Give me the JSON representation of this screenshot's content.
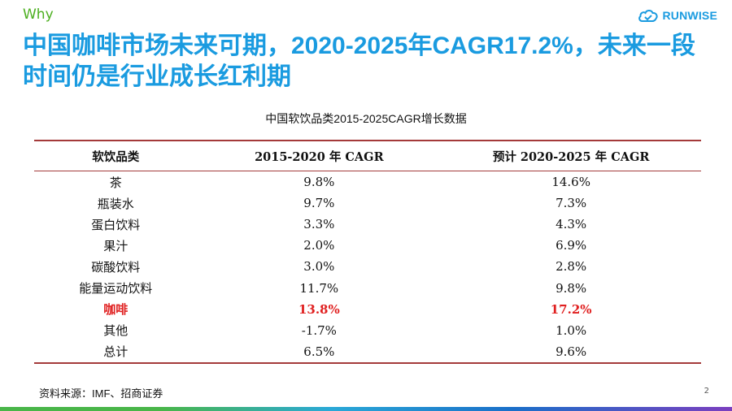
{
  "header": {
    "section_tag": "Why",
    "logo_text": "RUNWISE",
    "title": "中国咖啡市场未来可期，2020-2025年CAGR17.2%，未来一段时间仍是行业成长红利期"
  },
  "table": {
    "caption": "中国软饮品类2015-2025CAGR增长数据",
    "headers": [
      "软饮品类",
      "2015-2020 年 CAGR",
      "预计 2020-2025 年 CAGR"
    ],
    "rows": [
      {
        "category": "茶",
        "cagr_2015_2020": "9.8%",
        "cagr_2020_2025": "14.6%"
      },
      {
        "category": "瓶装水",
        "cagr_2015_2020": "9.7%",
        "cagr_2020_2025": "7.3%"
      },
      {
        "category": "蛋白饮料",
        "cagr_2015_2020": "3.3%",
        "cagr_2020_2025": "4.3%"
      },
      {
        "category": "果汁",
        "cagr_2015_2020": "2.0%",
        "cagr_2020_2025": "6.9%"
      },
      {
        "category": "碳酸饮料",
        "cagr_2015_2020": "3.0%",
        "cagr_2020_2025": "2.8%"
      },
      {
        "category": "能量运动饮料",
        "cagr_2015_2020": "11.7%",
        "cagr_2020_2025": "9.8%"
      },
      {
        "category": "咖啡",
        "cagr_2015_2020": "13.8%",
        "cagr_2020_2025": "17.2%"
      },
      {
        "category": "其他",
        "cagr_2015_2020": "-1.7%",
        "cagr_2020_2025": "1.0%"
      },
      {
        "category": "总计",
        "cagr_2015_2020": "6.5%",
        "cagr_2020_2025": "9.6%"
      }
    ],
    "highlight_color": "#e02020"
  },
  "footer": {
    "source": "资料来源：IMF、招商证券",
    "page_number": "2"
  },
  "colors": {
    "accent": "#1a9be0",
    "why_green": "#4caf1f",
    "table_rule": "#a43a3a"
  }
}
